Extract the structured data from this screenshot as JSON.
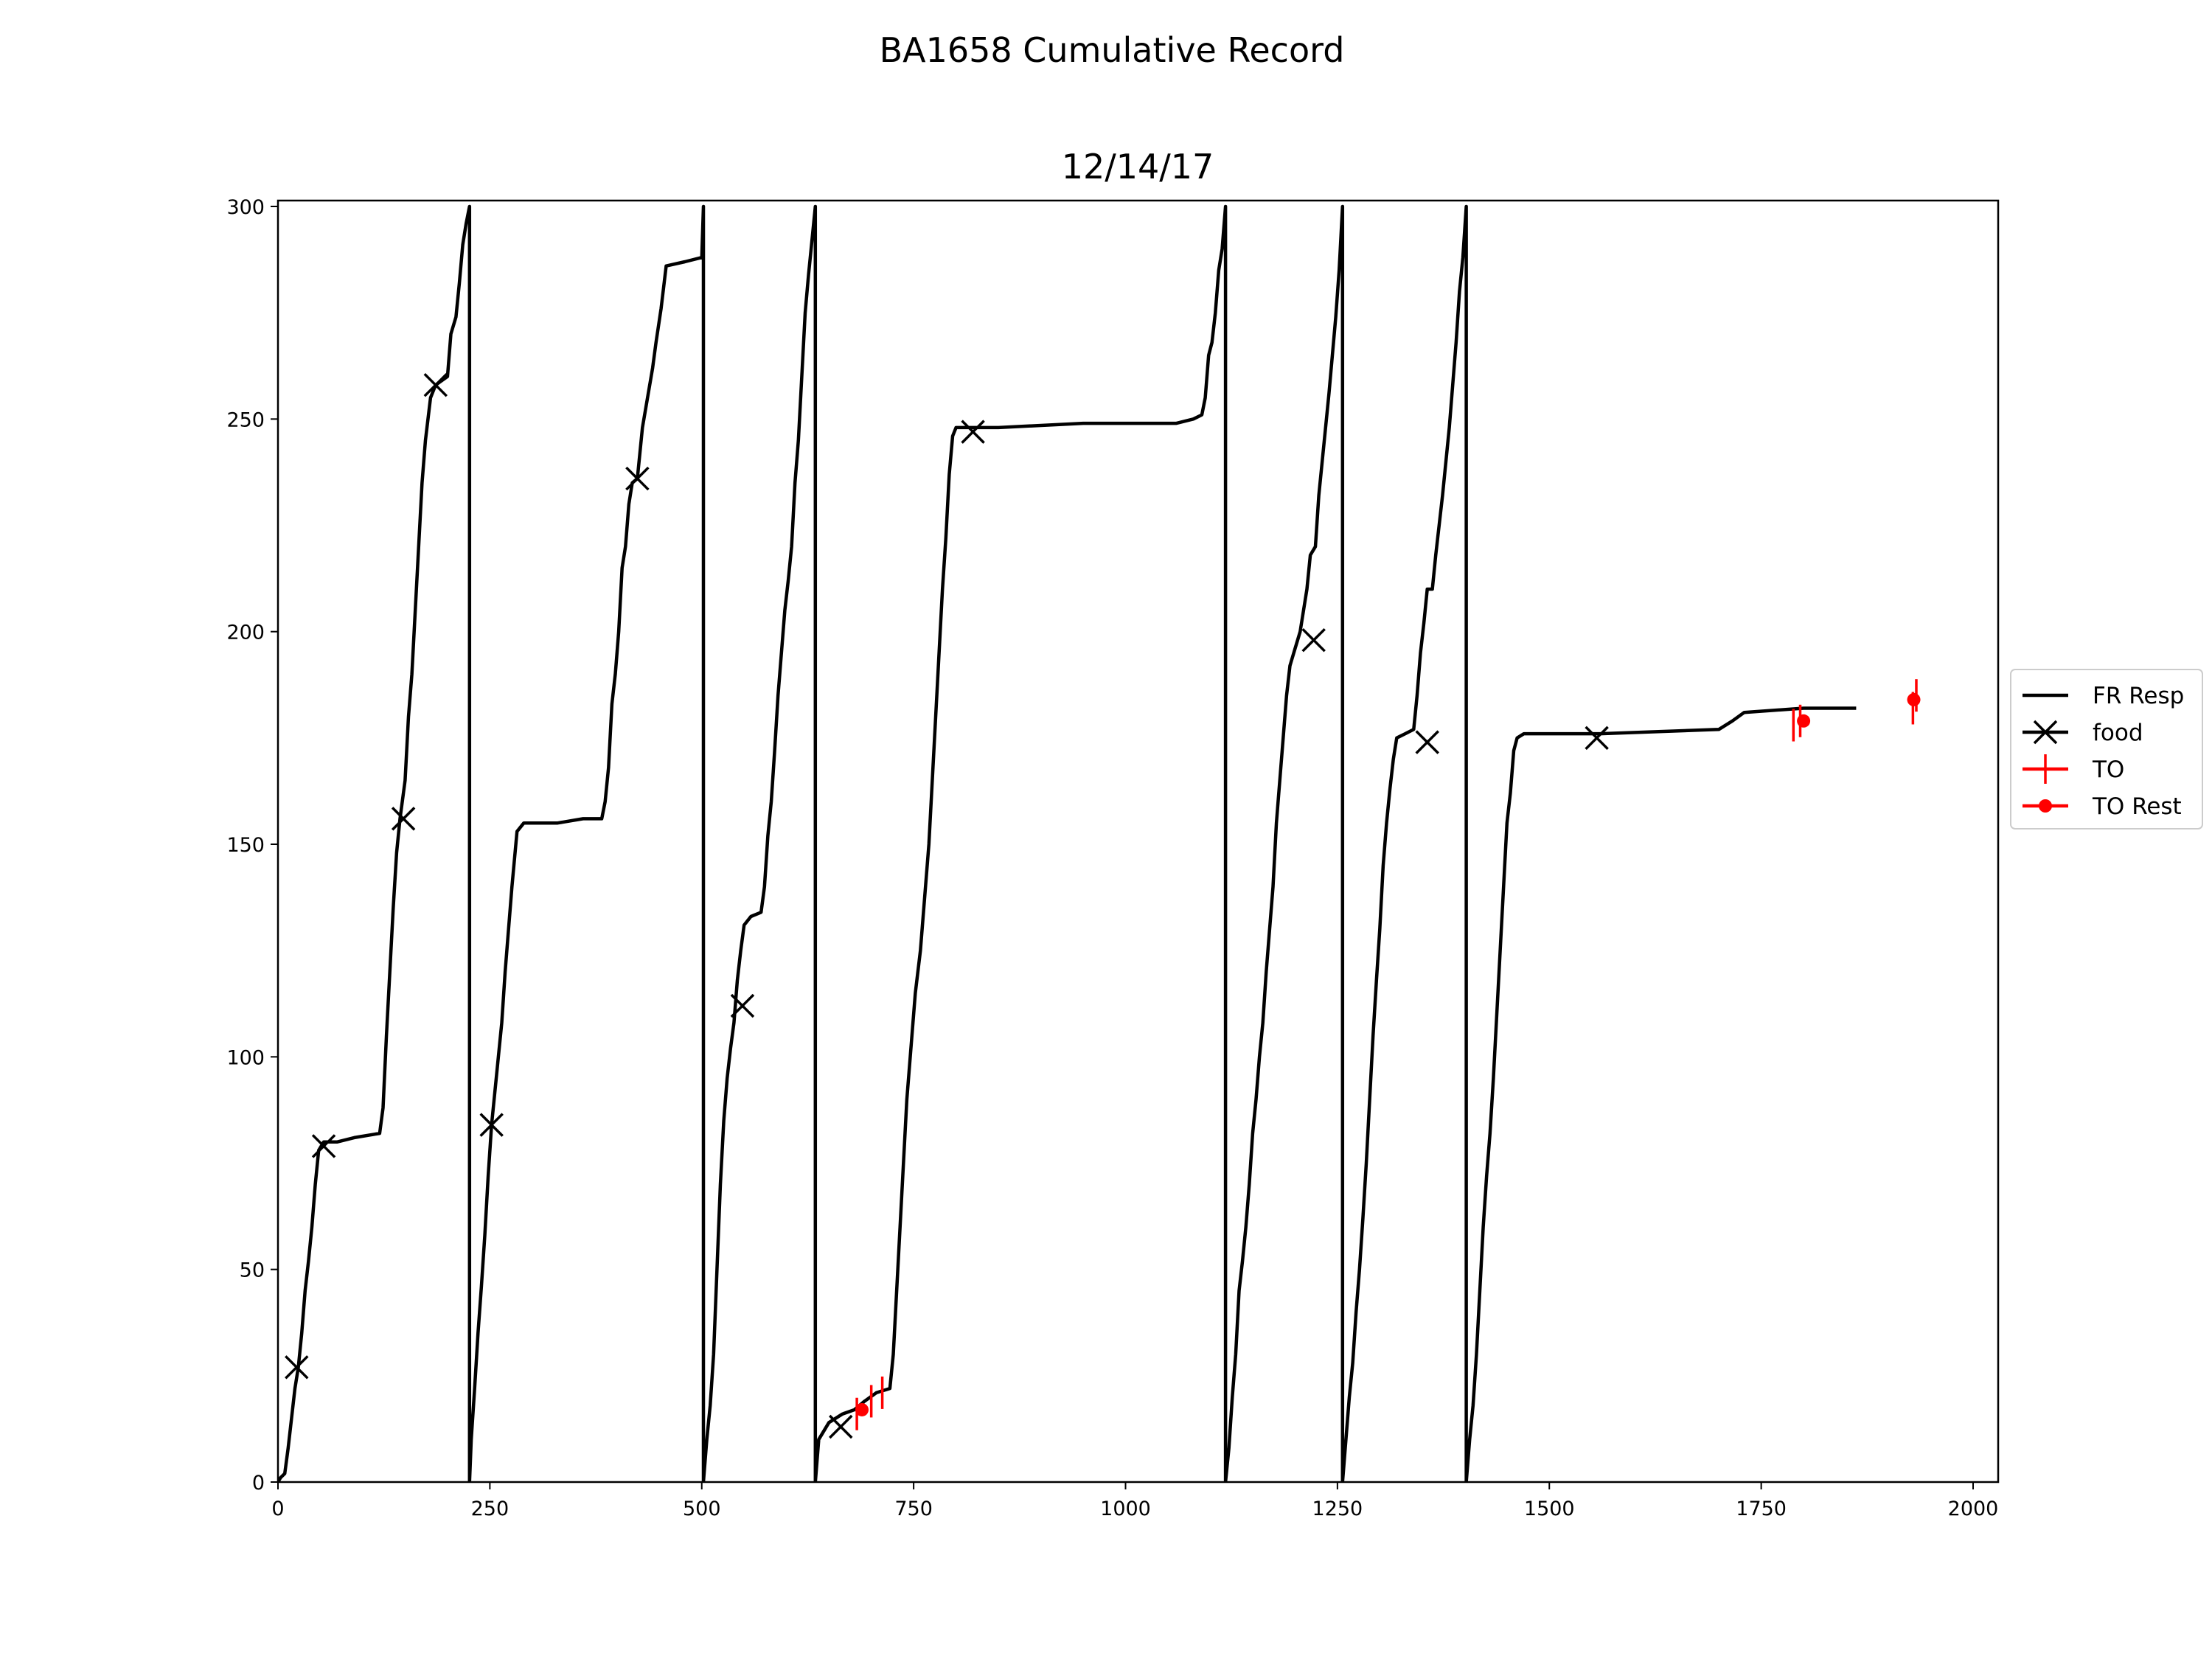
{
  "figure": {
    "suptitle": "BA1658 Cumulative Record",
    "title": "12/14/17"
  },
  "chart_data": {
    "type": "line",
    "title": "12/14/17",
    "xlabel": "",
    "ylabel": "",
    "xlim": [
      0,
      2030
    ],
    "ylim": [
      0,
      301
    ],
    "xticks": [
      0,
      250,
      500,
      750,
      1000,
      1250,
      1500,
      1750,
      2000
    ],
    "yticks": [
      0,
      50,
      100,
      150,
      200,
      250,
      300
    ],
    "grid": false,
    "legend_position": "right, outside plot",
    "series": [
      {
        "name": "FR Resp",
        "style": "line",
        "color": "#000000",
        "points": [
          [
            0,
            0
          ],
          [
            3,
            1
          ],
          [
            8,
            2
          ],
          [
            12,
            8
          ],
          [
            16,
            15
          ],
          [
            20,
            22
          ],
          [
            24,
            27
          ],
          [
            28,
            35
          ],
          [
            32,
            45
          ],
          [
            36,
            52
          ],
          [
            40,
            60
          ],
          [
            44,
            70
          ],
          [
            48,
            78
          ],
          [
            54,
            80
          ],
          [
            70,
            80
          ],
          [
            90,
            81
          ],
          [
            120,
            82
          ],
          [
            124,
            88
          ],
          [
            128,
            105
          ],
          [
            132,
            120
          ],
          [
            136,
            135
          ],
          [
            140,
            148
          ],
          [
            144,
            156
          ],
          [
            150,
            165
          ],
          [
            154,
            180
          ],
          [
            158,
            190
          ],
          [
            162,
            205
          ],
          [
            166,
            220
          ],
          [
            170,
            235
          ],
          [
            174,
            245
          ],
          [
            180,
            255
          ],
          [
            186,
            258
          ],
          [
            200,
            260
          ],
          [
            204,
            270
          ],
          [
            210,
            274
          ],
          [
            214,
            282
          ],
          [
            218,
            291
          ],
          [
            222,
            296
          ],
          [
            226,
            300
          ],
          [
            226,
            0
          ],
          [
            228,
            10
          ],
          [
            232,
            22
          ],
          [
            236,
            35
          ],
          [
            240,
            46
          ],
          [
            244,
            58
          ],
          [
            248,
            72
          ],
          [
            252,
            84
          ],
          [
            256,
            92
          ],
          [
            260,
            100
          ],
          [
            264,
            108
          ],
          [
            268,
            120
          ],
          [
            272,
            130
          ],
          [
            276,
            140
          ],
          [
            282,
            153
          ],
          [
            290,
            155
          ],
          [
            330,
            155
          ],
          [
            360,
            156
          ],
          [
            382,
            156
          ],
          [
            386,
            160
          ],
          [
            390,
            168
          ],
          [
            394,
            183
          ],
          [
            398,
            190
          ],
          [
            402,
            200
          ],
          [
            406,
            215
          ],
          [
            410,
            220
          ],
          [
            414,
            230
          ],
          [
            418,
            235
          ],
          [
            424,
            236
          ],
          [
            430,
            248
          ],
          [
            436,
            255
          ],
          [
            442,
            262
          ],
          [
            446,
            268
          ],
          [
            452,
            276
          ],
          [
            458,
            286
          ],
          [
            480,
            287
          ],
          [
            500,
            288
          ],
          [
            502,
            300
          ],
          [
            502,
            0
          ],
          [
            506,
            10
          ],
          [
            510,
            18
          ],
          [
            514,
            30
          ],
          [
            518,
            50
          ],
          [
            522,
            70
          ],
          [
            526,
            85
          ],
          [
            530,
            95
          ],
          [
            534,
            102
          ],
          [
            538,
            108
          ],
          [
            542,
            118
          ],
          [
            546,
            125
          ],
          [
            550,
            131
          ],
          [
            558,
            133
          ],
          [
            570,
            134
          ],
          [
            574,
            140
          ],
          [
            578,
            152
          ],
          [
            582,
            160
          ],
          [
            586,
            172
          ],
          [
            590,
            185
          ],
          [
            594,
            195
          ],
          [
            598,
            205
          ],
          [
            602,
            212
          ],
          [
            606,
            220
          ],
          [
            610,
            235
          ],
          [
            614,
            245
          ],
          [
            618,
            260
          ],
          [
            622,
            275
          ],
          [
            626,
            284
          ],
          [
            630,
            292
          ],
          [
            634,
            300
          ],
          [
            634,
            0
          ],
          [
            638,
            10
          ],
          [
            650,
            14
          ],
          [
            666,
            16
          ],
          [
            680,
            17
          ],
          [
            692,
            19
          ],
          [
            706,
            21
          ],
          [
            722,
            22
          ],
          [
            726,
            30
          ],
          [
            730,
            45
          ],
          [
            734,
            60
          ],
          [
            738,
            75
          ],
          [
            742,
            90
          ],
          [
            746,
            100
          ],
          [
            752,
            115
          ],
          [
            758,
            125
          ],
          [
            764,
            140
          ],
          [
            768,
            150
          ],
          [
            772,
            165
          ],
          [
            776,
            180
          ],
          [
            780,
            195
          ],
          [
            784,
            210
          ],
          [
            788,
            222
          ],
          [
            792,
            237
          ],
          [
            796,
            246
          ],
          [
            800,
            248
          ],
          [
            850,
            248
          ],
          [
            950,
            249
          ],
          [
            1060,
            249
          ],
          [
            1080,
            250
          ],
          [
            1090,
            251
          ],
          [
            1094,
            255
          ],
          [
            1098,
            265
          ],
          [
            1102,
            268
          ],
          [
            1106,
            275
          ],
          [
            1110,
            285
          ],
          [
            1114,
            290
          ],
          [
            1118,
            300
          ],
          [
            1118,
            0
          ],
          [
            1122,
            8
          ],
          [
            1126,
            20
          ],
          [
            1130,
            30
          ],
          [
            1134,
            45
          ],
          [
            1138,
            52
          ],
          [
            1142,
            60
          ],
          [
            1146,
            70
          ],
          [
            1150,
            82
          ],
          [
            1154,
            90
          ],
          [
            1158,
            100
          ],
          [
            1162,
            108
          ],
          [
            1166,
            120
          ],
          [
            1170,
            130
          ],
          [
            1174,
            140
          ],
          [
            1178,
            155
          ],
          [
            1182,
            165
          ],
          [
            1186,
            175
          ],
          [
            1190,
            185
          ],
          [
            1194,
            192
          ],
          [
            1200,
            196
          ],
          [
            1206,
            200
          ],
          [
            1210,
            205
          ],
          [
            1214,
            210
          ],
          [
            1218,
            218
          ],
          [
            1224,
            220
          ],
          [
            1228,
            232
          ],
          [
            1232,
            240
          ],
          [
            1236,
            248
          ],
          [
            1240,
            256
          ],
          [
            1244,
            265
          ],
          [
            1248,
            274
          ],
          [
            1252,
            285
          ],
          [
            1256,
            300
          ],
          [
            1256,
            0
          ],
          [
            1260,
            10
          ],
          [
            1264,
            20
          ],
          [
            1268,
            28
          ],
          [
            1272,
            40
          ],
          [
            1276,
            50
          ],
          [
            1280,
            62
          ],
          [
            1284,
            75
          ],
          [
            1288,
            90
          ],
          [
            1292,
            105
          ],
          [
            1296,
            118
          ],
          [
            1300,
            130
          ],
          [
            1304,
            145
          ],
          [
            1308,
            155
          ],
          [
            1312,
            163
          ],
          [
            1316,
            170
          ],
          [
            1320,
            175
          ],
          [
            1330,
            176
          ],
          [
            1340,
            177
          ],
          [
            1344,
            185
          ],
          [
            1348,
            195
          ],
          [
            1352,
            202
          ],
          [
            1356,
            210
          ],
          [
            1362,
            210
          ],
          [
            1366,
            218
          ],
          [
            1370,
            225
          ],
          [
            1374,
            232
          ],
          [
            1378,
            240
          ],
          [
            1382,
            248
          ],
          [
            1386,
            258
          ],
          [
            1390,
            268
          ],
          [
            1394,
            280
          ],
          [
            1398,
            288
          ],
          [
            1402,
            300
          ],
          [
            1402,
            0
          ],
          [
            1406,
            10
          ],
          [
            1410,
            18
          ],
          [
            1414,
            30
          ],
          [
            1418,
            45
          ],
          [
            1422,
            60
          ],
          [
            1426,
            72
          ],
          [
            1430,
            82
          ],
          [
            1434,
            95
          ],
          [
            1438,
            110
          ],
          [
            1442,
            125
          ],
          [
            1446,
            140
          ],
          [
            1450,
            155
          ],
          [
            1454,
            162
          ],
          [
            1458,
            172
          ],
          [
            1462,
            175
          ],
          [
            1470,
            176
          ],
          [
            1560,
            176
          ],
          [
            1700,
            177
          ],
          [
            1716,
            179
          ],
          [
            1730,
            181
          ],
          [
            1800,
            182
          ],
          [
            1862,
            182
          ]
        ]
      },
      {
        "name": "food",
        "style": "x-marker",
        "color": "#000000",
        "points": [
          [
            22,
            27
          ],
          [
            54,
            79
          ],
          [
            148,
            156
          ],
          [
            186,
            258
          ],
          [
            252,
            84
          ],
          [
            424,
            236
          ],
          [
            548,
            112
          ],
          [
            664,
            13
          ],
          [
            820,
            247
          ],
          [
            1222,
            198
          ],
          [
            1356,
            174
          ],
          [
            1556,
            175
          ]
        ]
      },
      {
        "name": "TO",
        "style": "vertical-tick",
        "color": "#ff0000",
        "points": [
          [
            683,
            16
          ],
          [
            700,
            19
          ],
          [
            713,
            21
          ],
          [
            1788,
            178
          ],
          [
            1796,
            179
          ],
          [
            1929,
            182
          ],
          [
            1933,
            185
          ]
        ]
      },
      {
        "name": "TO Rest",
        "style": "dot",
        "color": "#ff0000",
        "points": [
          [
            689,
            17
          ],
          [
            1800,
            179
          ],
          [
            1930,
            184
          ]
        ]
      }
    ]
  }
}
